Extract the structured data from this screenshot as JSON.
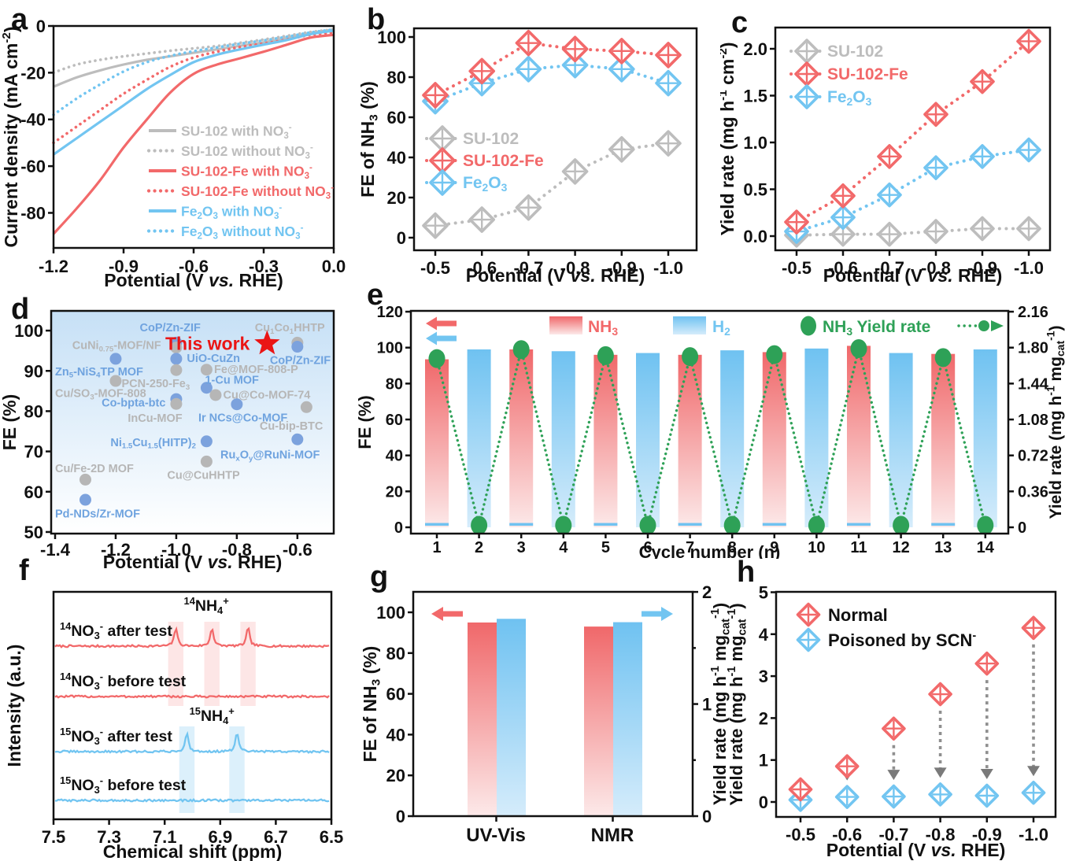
{
  "colors": {
    "red": "#f2696a",
    "blue": "#72c5f1",
    "gray": "#bdbdbd",
    "green": "#2ea157",
    "black": "#111111",
    "star_red": "#ea1515",
    "d_blue": "#7ca2dd",
    "d_blue_label": "#6fa3df",
    "d_gray": "#b6b6b6",
    "d_bg_top": "#c6e0f6",
    "arrow_gray": "#8f8f8f",
    "red_bar_top": "#f0686a",
    "red_bar_bottom": "#fce9e9",
    "blue_bar_top": "#6fc2f1",
    "blue_bar_bottom": "#d5ecfb"
  },
  "chart_data": [
    {
      "letter": "a",
      "type": "line",
      "xlabel": "Potential (V *vs.* RHE)",
      "ylabel": "Current density (mA cm^-2^)",
      "xlim": [
        -1.2,
        0.0
      ],
      "ylim": [
        -95,
        0
      ],
      "xtick_labels": [
        "-1.2",
        "-0.9",
        "-0.6",
        "-0.3",
        "0.0"
      ],
      "xticks": [
        -1.2,
        -0.9,
        -0.6,
        -0.3,
        0.0
      ],
      "ytick_labels": [
        "0",
        "-20",
        "-40",
        "-60",
        "-80"
      ],
      "yticks": [
        0,
        -20,
        -40,
        -60,
        -80
      ],
      "x": [
        -1.2,
        -1.1,
        -1.0,
        -0.9,
        -0.8,
        -0.7,
        -0.6,
        -0.5,
        -0.4,
        -0.3,
        -0.2,
        -0.1,
        0.0
      ],
      "series": [
        {
          "name": "SU-102 with NO~3~^-^",
          "color": "gray",
          "style": "solid",
          "values": [
            -26,
            -22,
            -19,
            -16.5,
            -14.5,
            -13,
            -11.5,
            -10,
            -8.5,
            -7,
            -5.2,
            -3.2,
            -1.5
          ]
        },
        {
          "name": "SU-102 without NO~3~^-^",
          "color": "gray",
          "style": "dotted",
          "values": [
            -20,
            -16.5,
            -14.5,
            -13,
            -11.8,
            -10.6,
            -9.6,
            -8.6,
            -7.2,
            -5.8,
            -4.2,
            -2.6,
            -1.5
          ]
        },
        {
          "name": "SU-102-Fe with NO~3~^-^",
          "color": "red",
          "style": "solid",
          "values": [
            -89,
            -78,
            -66,
            -52,
            -40,
            -28.5,
            -20.5,
            -16.5,
            -13.8,
            -11,
            -8,
            -5,
            -3.8
          ]
        },
        {
          "name": "SU-102-Fe without NO~3~^-^",
          "color": "red",
          "style": "dotted",
          "values": [
            -50,
            -43,
            -36,
            -29,
            -23,
            -17.5,
            -13.5,
            -11,
            -9,
            -7.5,
            -5.8,
            -3.8,
            -2.8
          ]
        },
        {
          "name": "Fe~2~O~3~ with NO~3~^-^",
          "color": "blue",
          "style": "solid",
          "values": [
            -55,
            -48,
            -41,
            -34,
            -27,
            -21,
            -15.5,
            -12.3,
            -10,
            -8,
            -6,
            -3.5,
            -2
          ]
        },
        {
          "name": "Fe~2~O~3~ without NO~3~^-^",
          "color": "blue",
          "style": "dotted",
          "values": [
            -38,
            -31,
            -25,
            -19.5,
            -15.5,
            -12.8,
            -10.8,
            -9.2,
            -7.6,
            -6.2,
            -4.6,
            -2.8,
            -1.5
          ]
        }
      ]
    },
    {
      "letter": "b",
      "type": "scatter",
      "xlabel": "Potential (V *vs.* RHE)",
      "ylabel": "FE of NH~3~ (%)",
      "categories": [
        "-0.5",
        "-0.6",
        "-0.7",
        "-0.8",
        "-0.9",
        "-1.0"
      ],
      "ytick_labels": [
        "0",
        "20",
        "40",
        "60",
        "80",
        "100"
      ],
      "yticks": [
        0,
        20,
        40,
        60,
        80,
        100
      ],
      "ylim": [
        -6,
        105
      ],
      "series": [
        {
          "name": "SU-102",
          "color": "gray",
          "values": [
            6,
            9,
            15,
            33,
            44,
            47
          ]
        },
        {
          "name": "Fe~2~O~3~",
          "color": "blue",
          "values": [
            68,
            77,
            84,
            86,
            84,
            77
          ]
        },
        {
          "name": "SU-102-Fe",
          "color": "red",
          "values": [
            71,
            83,
            97,
            94,
            93,
            91
          ]
        }
      ],
      "legend_order": [
        "SU-102",
        "SU-102-Fe",
        "Fe~2~O~3~"
      ]
    },
    {
      "letter": "c",
      "type": "scatter",
      "xlabel": "Potential (V *vs.* RHE)",
      "ylabel": "Yield rate (mg h^-1^ cm^-2^)",
      "categories": [
        "-0.5",
        "-0.6",
        "-0.7",
        "-0.8",
        "-0.9",
        "-1.0"
      ],
      "ytick_labels": [
        "0.0",
        "0.5",
        "1.0",
        "1.5",
        "2.0"
      ],
      "yticks": [
        0,
        0.5,
        1.0,
        1.5,
        2.0
      ],
      "ylim": [
        -0.15,
        2.23
      ],
      "series": [
        {
          "name": "SU-102",
          "color": "gray",
          "values": [
            0.01,
            0.02,
            0.02,
            0.05,
            0.08,
            0.08
          ]
        },
        {
          "name": "Fe~2~O~3~",
          "color": "blue",
          "values": [
            0.05,
            0.2,
            0.44,
            0.73,
            0.85,
            0.92
          ]
        },
        {
          "name": "SU-102-Fe",
          "color": "red",
          "values": [
            0.15,
            0.43,
            0.85,
            1.3,
            1.65,
            2.08
          ]
        }
      ],
      "legend_order": [
        "SU-102",
        "SU-102-Fe",
        "Fe~2~O~3~"
      ]
    },
    {
      "letter": "d",
      "type": "scatter",
      "xlabel": "Potential (V *vs.* RHE)",
      "ylabel": "FE (%)",
      "xtick_labels": [
        "-1.4",
        "-1.2",
        "-1.0",
        "-0.8",
        "-0.6"
      ],
      "xticks": [
        -1.4,
        -1.2,
        -1.0,
        -0.8,
        -0.6
      ],
      "ytick_labels": [
        "50",
        "60",
        "70",
        "80",
        "90",
        "100"
      ],
      "yticks": [
        50,
        60,
        70,
        80,
        90,
        100
      ],
      "xlim": [
        -1.413,
        -0.48
      ],
      "ylim": [
        49.6,
        104.9
      ],
      "this_work": {
        "label": "This work",
        "x": -0.7,
        "fe": 96.8
      },
      "points": [
        {
          "label": "CoP/Zn-ZIF",
          "x": -1.0,
          "fe": 97,
          "group": "blue",
          "lx": -1.02,
          "ly": 100.8,
          "anchor": "middle"
        },
        {
          "label": "CuNi~0.75~-MOF/NF",
          "x": -1.0,
          "fe": 95.8,
          "group": "gray",
          "lx": -1.05,
          "ly": 96.4,
          "anchor": "end"
        },
        {
          "label": "Cu~1~Co~1~HHTP",
          "x": -0.6,
          "fe": 97,
          "group": "gray",
          "lx": -0.625,
          "ly": 100.8,
          "anchor": "middle"
        },
        {
          "label": "CoP/Zn-ZIF",
          "x": -0.6,
          "fe": 96,
          "group": "blue",
          "lx": -0.49,
          "ly": 92.7,
          "anchor": "end"
        },
        {
          "label": "Zn~5~-NiS~4~TP MOF",
          "x": -1.2,
          "fe": 93,
          "group": "blue",
          "lx": -1.4,
          "ly": 89.9,
          "anchor": "start"
        },
        {
          "label": "UiO-CuZn",
          "x": -1.0,
          "fe": 93,
          "group": "blue",
          "lx": -0.965,
          "ly": 93.2,
          "anchor": "start"
        },
        {
          "label": "PCN-250-Fe~3~",
          "x": -1.0,
          "fe": 90.2,
          "group": "gray",
          "lx": -0.955,
          "ly": 86.9,
          "anchor": "end"
        },
        {
          "label": "Fe@MOF-808-P",
          "x": -0.9,
          "fe": 90.3,
          "group": "gray",
          "lx": -0.875,
          "ly": 90.4,
          "anchor": "start"
        },
        {
          "label": "1-Cu MOF",
          "x": -0.9,
          "fe": 85.8,
          "group": "blue",
          "lx": -0.905,
          "ly": 87.8,
          "anchor": "start"
        },
        {
          "label": "Cu/SO~3~-MOF-808",
          "x": -1.2,
          "fe": 87.5,
          "group": "gray",
          "lx": -1.4,
          "ly": 84.5,
          "anchor": "start"
        },
        {
          "label": "Cu@Co-MOF-74",
          "x": -0.87,
          "fe": 84,
          "group": "gray",
          "lx": -0.845,
          "ly": 84.1,
          "anchor": "start"
        },
        {
          "label": "Co-bpta-btc",
          "x": -1.0,
          "fe": 83,
          "group": "blue",
          "lx": -1.035,
          "ly": 82.1,
          "anchor": "end"
        },
        {
          "label": "InCu-MOF",
          "x": -1.0,
          "fe": 81.8,
          "group": "gray",
          "lx": -1.07,
          "ly": 78.3,
          "anchor": "middle"
        },
        {
          "label": "Ir NCs@Co-MOF",
          "x": -0.8,
          "fe": 81.7,
          "group": "blue",
          "lx": -0.78,
          "ly": 78.4,
          "anchor": "middle"
        },
        {
          "label": "Cu-bip-BTC",
          "x": -0.57,
          "fe": 81,
          "group": "gray",
          "lx": -0.62,
          "ly": 76.4,
          "anchor": "middle"
        },
        {
          "label": "Ni~1.5~Cu~1.5~(HITP)~2~",
          "x": -0.9,
          "fe": 72.5,
          "group": "blue",
          "lx": -0.935,
          "ly": 72.3,
          "anchor": "end"
        },
        {
          "label": "Ru~x~O~y~@RuNi-MOF",
          "x": -0.6,
          "fe": 73,
          "group": "blue",
          "lx": -0.69,
          "ly": 69.2,
          "anchor": "middle"
        },
        {
          "label": "Cu@CuHHTP",
          "x": -0.9,
          "fe": 67.5,
          "group": "gray",
          "lx": -0.91,
          "ly": 64.2,
          "anchor": "middle"
        },
        {
          "label": "Cu/Fe-2D MOF",
          "x": -1.3,
          "fe": 63,
          "group": "gray",
          "lx": -1.4,
          "ly": 65.8,
          "anchor": "start"
        },
        {
          "label": "Pd-NDs/Zr-MOF",
          "x": -1.3,
          "fe": 58,
          "group": "blue",
          "lx": -1.4,
          "ly": 54.6,
          "anchor": "start"
        }
      ]
    },
    {
      "letter": "e",
      "type": "bar",
      "xlabel": "Cycle number (n)",
      "ylabel_left": "FE (%)",
      "ylabel_right": "Yield rate (mg h^-1^ mg~cat~^-1^)",
      "categories": [
        "1",
        "2",
        "3",
        "4",
        "5",
        "6",
        "7",
        "8",
        "9",
        "10",
        "11",
        "12",
        "13",
        "14"
      ],
      "ytick_left_labels": [
        "0",
        "20",
        "40",
        "60",
        "80",
        "100",
        "120"
      ],
      "yticks_left": [
        0,
        20,
        40,
        60,
        80,
        100,
        120
      ],
      "ytick_right_labels": [
        "0",
        "0.36",
        "0.72",
        "1.08",
        "1.44",
        "1.80",
        "2.16"
      ],
      "yticks_right": [
        0,
        0.36,
        0.72,
        1.08,
        1.44,
        1.8,
        2.16
      ],
      "bars": [
        {
          "cycle": 1,
          "gas": "NH3",
          "fe": 93.5
        },
        {
          "cycle": 2,
          "gas": "H2",
          "fe": 99
        },
        {
          "cycle": 3,
          "gas": "NH3",
          "fe": 99
        },
        {
          "cycle": 4,
          "gas": "H2",
          "fe": 98
        },
        {
          "cycle": 5,
          "gas": "NH3",
          "fe": 96
        },
        {
          "cycle": 6,
          "gas": "H2",
          "fe": 97
        },
        {
          "cycle": 7,
          "gas": "NH3",
          "fe": 96
        },
        {
          "cycle": 8,
          "gas": "H2",
          "fe": 98.5
        },
        {
          "cycle": 9,
          "gas": "NH3",
          "fe": 97.5
        },
        {
          "cycle": 10,
          "gas": "H2",
          "fe": 99.5
        },
        {
          "cycle": 11,
          "gas": "NH3",
          "fe": 101
        },
        {
          "cycle": 12,
          "gas": "H2",
          "fe": 97
        },
        {
          "cycle": 13,
          "gas": "NH3",
          "fe": 96.5
        },
        {
          "cycle": 14,
          "gas": "H2",
          "fe": 99
        }
      ],
      "h2_strip_fe": [
        0.9,
        2.4
      ],
      "yield_rate": [
        1.69,
        0.02,
        1.78,
        0.02,
        1.72,
        0.02,
        1.71,
        0.02,
        1.73,
        0.02,
        1.79,
        0.02,
        1.7,
        0.02
      ],
      "legend": {
        "nh3": "NH~3~",
        "h2": "H~2~",
        "yield": "NH~3~ Yield rate"
      }
    },
    {
      "letter": "f",
      "type": "line",
      "xlabel": "Chemical shift (ppm)",
      "ylabel": "Intensity (a.u.)",
      "xtick_labels": [
        "7.5",
        "7.3",
        "7.1",
        "6.9",
        "6.7",
        "6.5"
      ],
      "xticks": [
        7.5,
        7.3,
        7.1,
        6.9,
        6.7,
        6.5
      ],
      "x_reversed": true,
      "traces": [
        {
          "label": "^14^NO~3~^-^ after test",
          "color": "red",
          "peaks": [
            7.06,
            6.93,
            6.8
          ]
        },
        {
          "label": "^14^NO~3~^-^ before test",
          "color": "red",
          "peaks": []
        },
        {
          "label": "^15^NO~3~^-^ after test",
          "color": "blue",
          "peaks": [
            7.02,
            6.84
          ]
        },
        {
          "label": "^15^NO~3~^-^ before test",
          "color": "blue",
          "peaks": []
        }
      ],
      "annotations": [
        {
          "text": "^14^NH~4~^+^",
          "x": 6.95
        },
        {
          "text": "^15^NH~4~^+^",
          "x": 6.93
        }
      ],
      "bands": {
        "red": [
          7.06,
          6.93,
          6.8
        ],
        "blue": [
          7.02,
          6.84
        ],
        "width_ppm": 0.055
      }
    },
    {
      "letter": "g",
      "type": "bar",
      "categories": [
        "UV-Vis",
        "NMR"
      ],
      "ylabel_left": "FE of NH~3~ (%)",
      "ylabel_right": "Yield rate (mg h^-1^ mg~cat~^-1^)",
      "ytick_left_labels": [
        "0",
        "20",
        "40",
        "60",
        "80",
        "100"
      ],
      "yticks_left": [
        0,
        20,
        40,
        60,
        80,
        100
      ],
      "ytick_right_labels": [
        "0",
        "1",
        "2"
      ],
      "yticks_right": [
        0,
        1,
        2
      ],
      "series": [
        {
          "name": "FE of NH3 (red, left axis)",
          "color": "red",
          "values": [
            95,
            93
          ]
        },
        {
          "name": "Yield rate (blue, right axis)",
          "color": "blue",
          "values": [
            1.76,
            1.73
          ]
        }
      ]
    },
    {
      "letter": "h",
      "type": "scatter",
      "xlabel": "Potential (V *vs.* RHE)",
      "ylabel": "Yield rate (mg h^-1^ mg~cat~^-1^)",
      "categories": [
        "-0.5",
        "-0.6",
        "-0.7",
        "-0.8",
        "-0.9",
        "-1.0"
      ],
      "ytick_labels": [
        "0",
        "1",
        "2",
        "3",
        "4",
        "5"
      ],
      "yticks": [
        0,
        1,
        2,
        3,
        4,
        5
      ],
      "ylim": [
        -0.35,
        5.0
      ],
      "series": [
        {
          "name": "Normal",
          "color": "red",
          "values": [
            0.3,
            0.85,
            1.75,
            2.57,
            3.3,
            4.15
          ]
        },
        {
          "name": "Poisoned by SCN^-^",
          "color": "blue",
          "values": [
            0.05,
            0.12,
            0.13,
            0.18,
            0.15,
            0.22
          ]
        }
      ],
      "arrow_indices": [
        1,
        2,
        3,
        4,
        5
      ]
    }
  ]
}
